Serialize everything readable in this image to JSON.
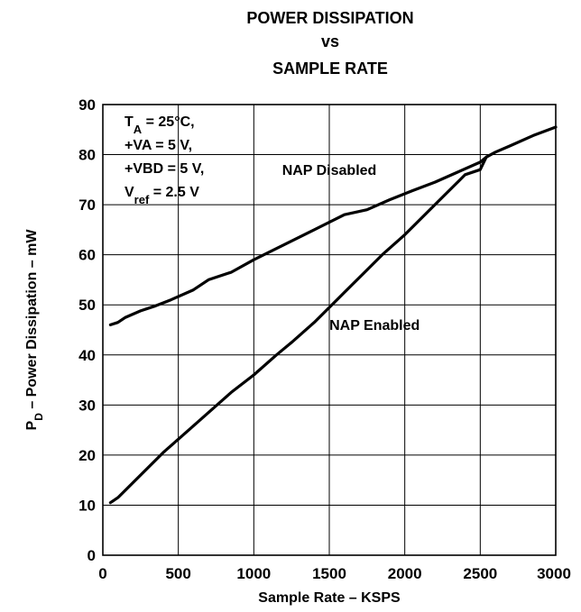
{
  "chart_data": {
    "type": "line",
    "title_lines": [
      "POWER DISSIPATION",
      "vs",
      "SAMPLE RATE"
    ],
    "xlabel": "Sample Rate – KSPS",
    "ylabel": {
      "main": "P",
      "sub": "D",
      "rest": " – Power Dissipation – mW"
    },
    "xlim": [
      0,
      3000
    ],
    "ylim": [
      0,
      90
    ],
    "xticks": [
      0,
      500,
      1000,
      1500,
      2000,
      2500,
      3000
    ],
    "yticks": [
      0,
      10,
      20,
      30,
      40,
      50,
      60,
      70,
      80,
      90
    ],
    "grid": true,
    "conditions": [
      {
        "main": "T",
        "sub": "A",
        "rest": " = 25°C,"
      },
      {
        "main": "+VA = 5 V,",
        "sub": "",
        "rest": ""
      },
      {
        "main": "+VBD = 5 V,",
        "sub": "",
        "rest": ""
      },
      {
        "main": "V",
        "sub": "ref",
        "rest": " = 2.5 V"
      }
    ],
    "series": [
      {
        "name": "NAP Disabled",
        "label_at": [
          1500,
          76
        ],
        "x": [
          50,
          100,
          150,
          250,
          350,
          450,
          600,
          700,
          850,
          1000,
          1200,
          1400,
          1600,
          1750,
          1900,
          2050,
          2200,
          2350,
          2500,
          2540,
          2600,
          2700,
          2850,
          3000
        ],
        "y": [
          46,
          46.5,
          47.5,
          48.8,
          49.8,
          51,
          53,
          55,
          56.5,
          59,
          62,
          65,
          68,
          69,
          71,
          72.8,
          74.5,
          76.5,
          78.5,
          79.5,
          80.5,
          81.8,
          83.8,
          85.5
        ]
      },
      {
        "name": "NAP Enabled",
        "label_at": [
          1800,
          45
        ],
        "x": [
          50,
          100,
          200,
          300,
          400,
          550,
          700,
          850,
          1000,
          1150,
          1250,
          1400,
          1550,
          1700,
          1850,
          2000,
          2150,
          2300,
          2400,
          2500,
          2540
        ],
        "y": [
          10.5,
          11.5,
          14.5,
          17.5,
          20.5,
          24.5,
          28.5,
          32.5,
          36,
          40,
          42.5,
          46.5,
          51,
          55.5,
          60,
          64,
          68.5,
          73,
          76,
          77,
          79.5
        ]
      }
    ]
  }
}
